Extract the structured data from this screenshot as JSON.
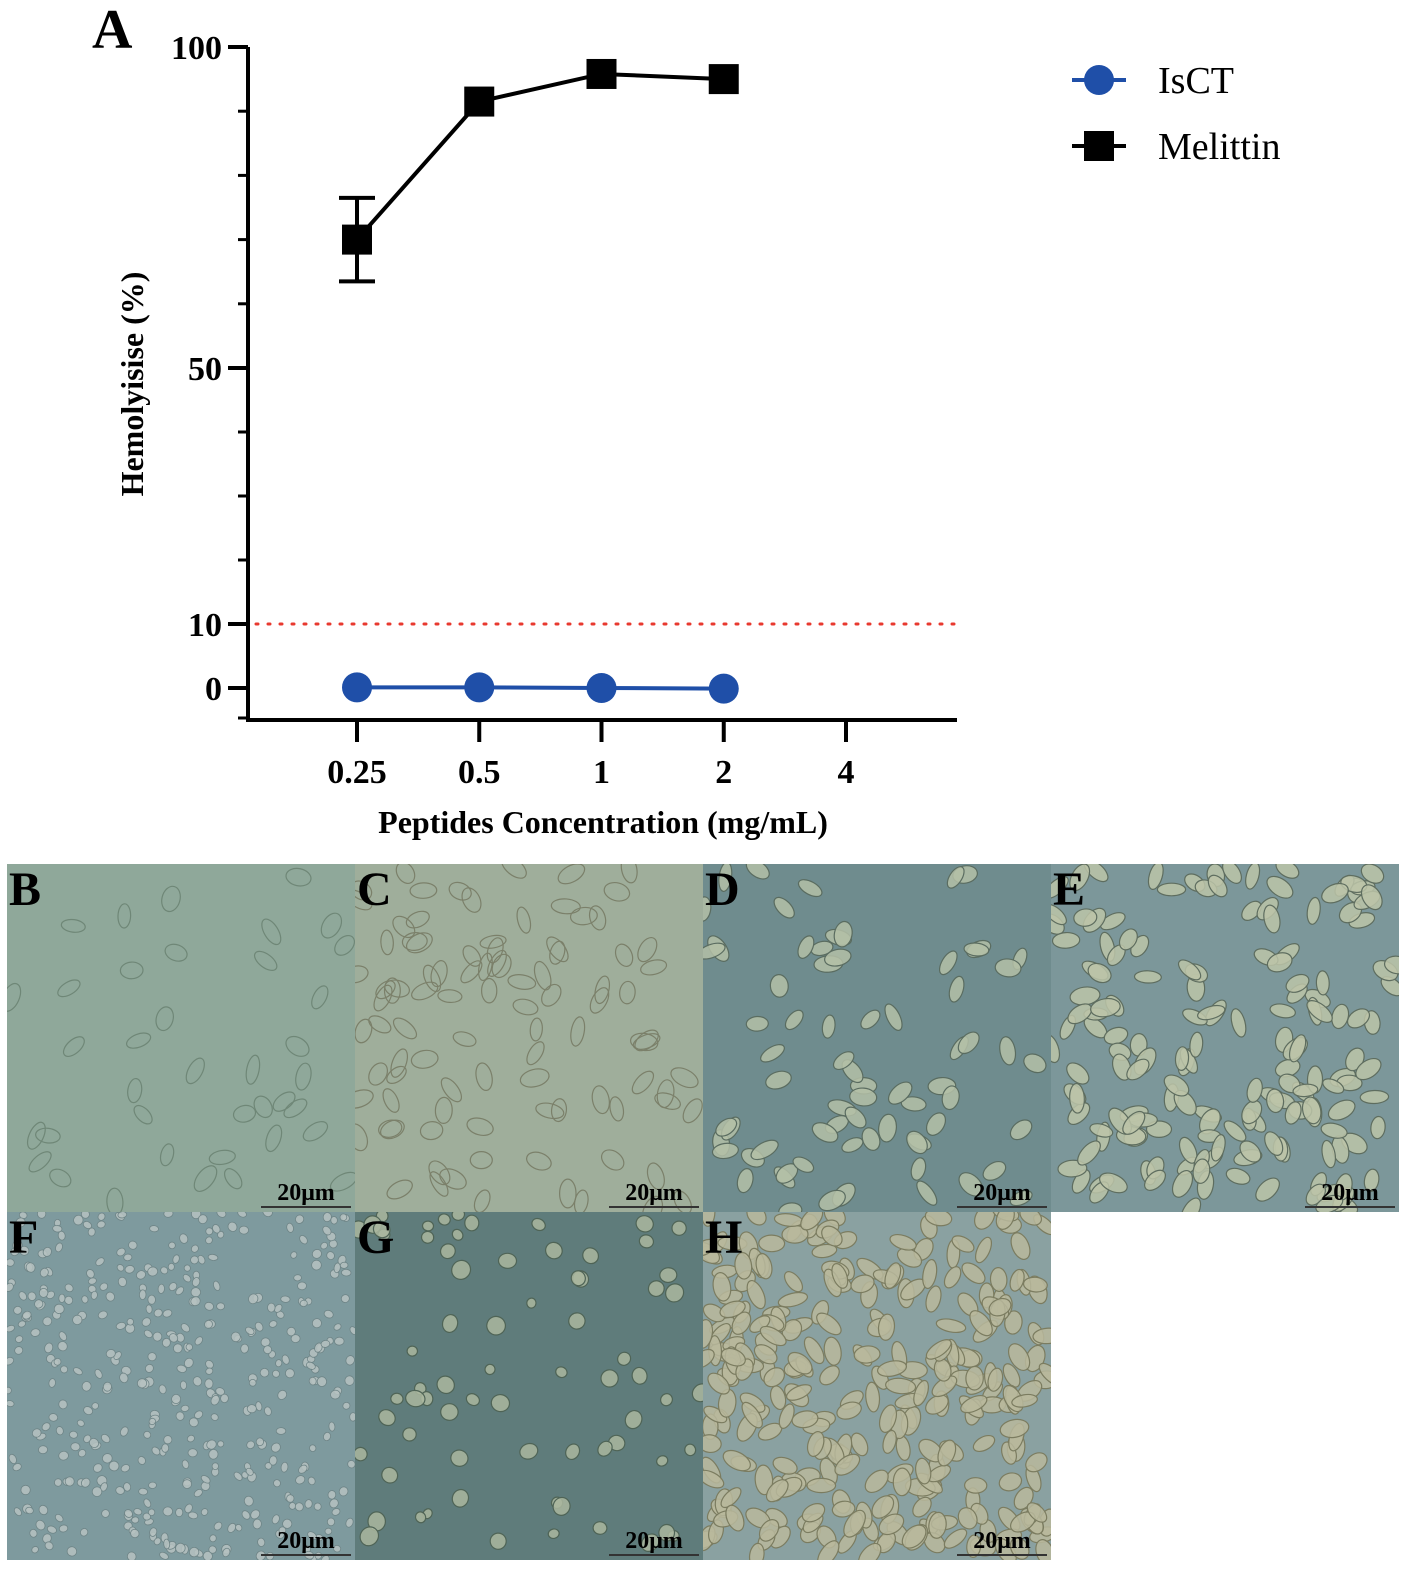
{
  "chart_data": {
    "type": "line",
    "panel_label": "A",
    "xlabel": "Peptides Concentration (mg/mL)",
    "ylabel": "Hemolyisise (%)",
    "x_scale": "log2",
    "x_ticks": [
      "0.25",
      "0.5",
      "1",
      "2",
      "4"
    ],
    "x_values": [
      0.25,
      0.5,
      1,
      2,
      4
    ],
    "y_ticks": [
      "0",
      "10",
      "50",
      "100"
    ],
    "y_tick_values": [
      0,
      10,
      50,
      100
    ],
    "ylim": [
      -5,
      100
    ],
    "reference_line": {
      "y": 10,
      "color": "#e8392f",
      "style": "dotted"
    },
    "legend_position": "top-right",
    "series": [
      {
        "name": "IsCT",
        "marker": "circle",
        "color": "#1f4fa8",
        "x": [
          0.25,
          0.5,
          1,
          2
        ],
        "y": [
          0.1,
          0.1,
          0.0,
          -0.1
        ],
        "err": [
          0,
          0,
          0,
          0
        ]
      },
      {
        "name": "Melittin",
        "marker": "square",
        "color": "#000000",
        "x": [
          0.25,
          0.5,
          1,
          2
        ],
        "y": [
          70,
          91.5,
          95.8,
          95.0
        ],
        "err": [
          6.5,
          0,
          0,
          0
        ]
      }
    ]
  },
  "micrographs": [
    {
      "label": "B",
      "scale": "20μm",
      "bg": "#8fa89a",
      "cell": "#c4d0c1",
      "edge": "#6f8777",
      "shape": "oval-outline",
      "count": 38,
      "seed": 11
    },
    {
      "label": "C",
      "scale": "20μm",
      "bg": "#9fae9b",
      "cell": "#bcc3a8",
      "edge": "#7b806a",
      "shape": "oval-outline",
      "count": 95,
      "seed": 23
    },
    {
      "label": "D",
      "scale": "20μm",
      "bg": "#6f8c8e",
      "cell": "#b4bfa7",
      "edge": "#5a6c60",
      "shape": "oval",
      "count": 70,
      "seed": 37
    },
    {
      "label": "E",
      "scale": "20μm",
      "bg": "#7c979a",
      "cell": "#bcc4a8",
      "edge": "#5e6d5f",
      "shape": "oval",
      "count": 165,
      "seed": 41
    },
    {
      "label": "F",
      "scale": "20μm",
      "bg": "#7e9a9e",
      "cell": "#b6c2c1",
      "edge": "#6e8486",
      "shape": "dot",
      "count": 420,
      "seed": 53
    },
    {
      "label": "G",
      "scale": "20μm",
      "bg": "#5f7c7b",
      "cell": "#aab79f",
      "edge": "#4f6456",
      "shape": "round",
      "count": 70,
      "seed": 67
    },
    {
      "label": "H",
      "scale": "20μm",
      "bg": "#8aa1a1",
      "cell": "#b9b99c",
      "edge": "#7b7c60",
      "shape": "oval",
      "count": 300,
      "seed": 79
    }
  ]
}
